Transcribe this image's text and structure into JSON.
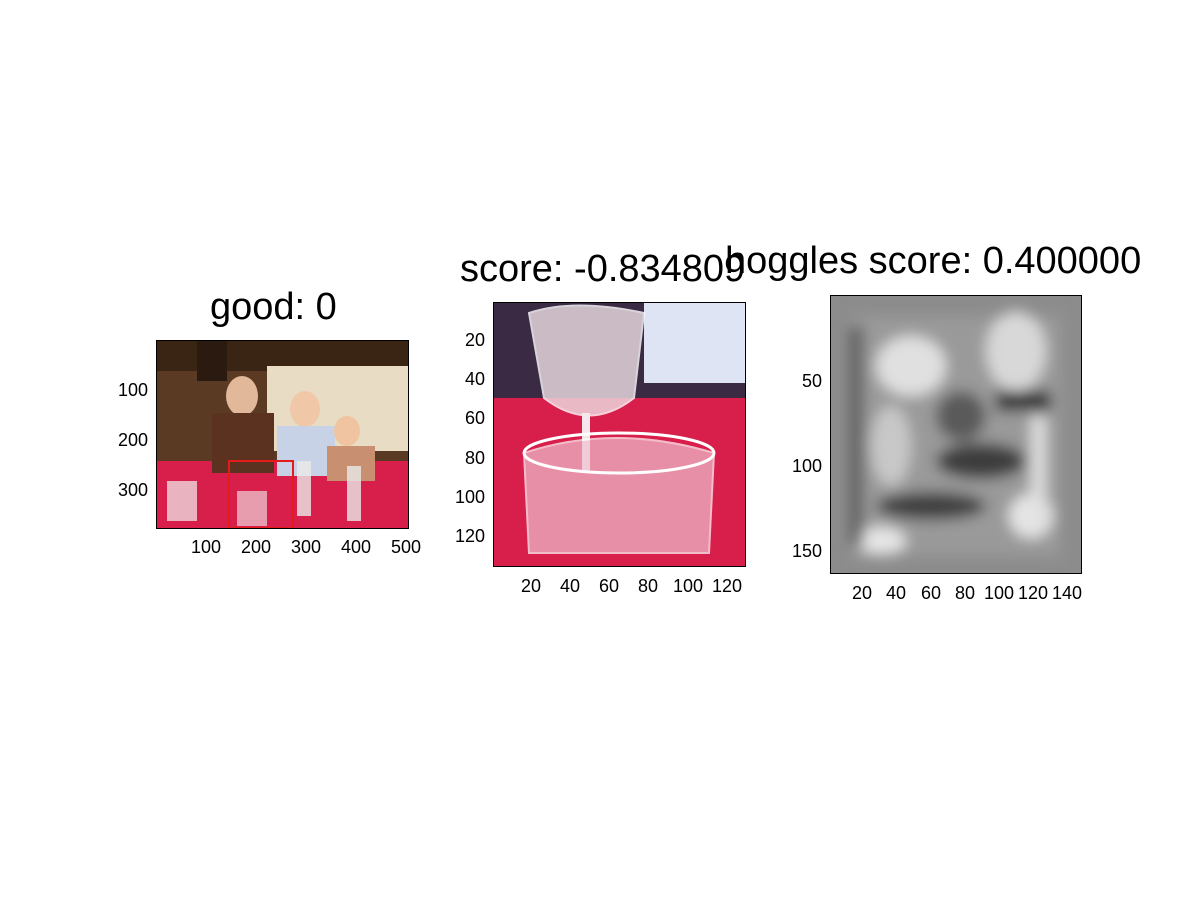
{
  "panels": [
    {
      "title": "good: 0",
      "yticks": [
        "100",
        "200",
        "300"
      ],
      "xticks": [
        "100",
        "200",
        "300",
        "400",
        "500"
      ],
      "image_description": "photo: three boys seated at a table with wine glasses and bottles on red tablecloth; red rectangle marks a wine glass region"
    },
    {
      "title": "score: -0.834809",
      "yticks": [
        "20",
        "40",
        "60",
        "80",
        "100",
        "120"
      ],
      "xticks": [
        "20",
        "40",
        "60",
        "80",
        "100",
        "120"
      ],
      "image_description": "cropped photo of wine glasses on red tablecloth"
    },
    {
      "title": "hoggles score: 0.400000",
      "yticks": [
        "50",
        "100",
        "150"
      ],
      "xticks": [
        "20",
        "40",
        "60",
        "80",
        "100",
        "120",
        "140"
      ],
      "image_description": "grayscale HOG visualization (inverted features)"
    }
  ],
  "colors": {
    "detection_box": "#e41b1b",
    "tablecloth": "#d81e4a"
  }
}
